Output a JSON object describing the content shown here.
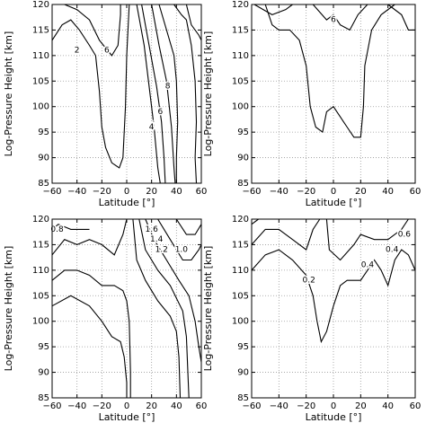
{
  "chart_data": [
    {
      "type": "contour",
      "xlabel": "Latitude [°]",
      "ylabel": "Log-Pressure Height [km]",
      "color": "#000000",
      "grid": true,
      "xlim": [
        -60,
        60
      ],
      "ylim": [
        85,
        120
      ],
      "xticks": [
        {
          "value": -60,
          "label": "−60"
        },
        {
          "value": -40,
          "label": "−40"
        },
        {
          "value": -20,
          "label": "−20"
        },
        0,
        20,
        40,
        60
      ],
      "yticks": [
        85,
        90,
        95,
        100,
        105,
        110,
        115,
        120
      ],
      "series": [
        {
          "x": [
            -60,
            -52,
            -45,
            -38,
            -30,
            -25,
            -22,
            -20,
            -17,
            -12,
            -6,
            -3,
            -1,
            0,
            2
          ],
          "y": [
            113,
            116,
            117,
            115,
            112,
            110,
            103,
            96,
            92,
            89,
            88,
            90,
            100,
            110,
            120
          ]
        },
        {
          "x": [
            -50,
            -40,
            -30,
            -22,
            -12,
            -7,
            -5,
            -5
          ],
          "y": [
            120,
            119,
            117,
            113,
            110,
            112,
            118,
            120
          ]
        },
        {
          "x": [
            8,
            14,
            18,
            22,
            25,
            27
          ],
          "y": [
            120,
            112,
            104,
            96,
            88,
            85
          ]
        },
        {
          "x": [
            12,
            18,
            24,
            28,
            30,
            31
          ],
          "y": [
            120,
            112,
            104,
            97,
            90,
            85
          ]
        },
        {
          "x": [
            20,
            26,
            32,
            36,
            38,
            39
          ],
          "y": [
            120,
            112,
            105,
            96,
            88,
            85
          ]
        },
        {
          "x": [
            26,
            32,
            38,
            40,
            41,
            40,
            40
          ],
          "y": [
            120,
            115,
            110,
            105,
            97,
            90,
            85
          ]
        },
        {
          "x": [
            38,
            44,
            48,
            52,
            55,
            56,
            55,
            56
          ],
          "y": [
            120,
            118,
            117,
            112,
            105,
            97,
            90,
            85
          ]
        },
        {
          "x": [
            48,
            52,
            58,
            60
          ],
          "y": [
            120,
            116,
            114,
            113
          ]
        }
      ],
      "contour_labels": [
        {
          "value": 2,
          "x": -40,
          "y": 111
        },
        {
          "value": 6,
          "x": -16,
          "y": 111
        },
        {
          "value": 8,
          "x": 33,
          "y": 104
        },
        {
          "value": 6,
          "x": 27,
          "y": 99
        },
        {
          "value": 4,
          "x": 20,
          "y": 96
        }
      ]
    },
    {
      "type": "contour",
      "xlabel": "Latitude [°]",
      "ylabel": "Log-Pressure Height [km]",
      "color": "#000000",
      "grid": true,
      "xlim": [
        -60,
        60
      ],
      "ylim": [
        85,
        120
      ],
      "xticks": [
        {
          "value": -60,
          "label": "−60"
        },
        {
          "value": -40,
          "label": "−40"
        },
        {
          "value": -20,
          "label": "−20"
        },
        0,
        20,
        40,
        60
      ],
      "yticks": [
        85,
        90,
        95,
        100,
        105,
        110,
        115,
        120
      ],
      "series": [
        {
          "x": [
            -50,
            -45,
            -40,
            -32,
            -25,
            -20,
            -17,
            -13,
            -8,
            -5,
            0,
            5,
            10,
            15,
            20,
            22,
            23,
            28,
            35,
            45
          ],
          "y": [
            120,
            116,
            115,
            115,
            113,
            108,
            100,
            96,
            95,
            99,
            100,
            98,
            96,
            94,
            94,
            100,
            108,
            115,
            118,
            120
          ]
        },
        {
          "x": [
            -58,
            -45,
            -35,
            -30
          ],
          "y": [
            120,
            118,
            119,
            120
          ]
        },
        {
          "x": [
            -15,
            -5,
            0,
            5,
            12,
            18,
            25
          ],
          "y": [
            120,
            117,
            118,
            116,
            115,
            118,
            120
          ]
        },
        {
          "x": [
            40,
            50,
            55,
            60
          ],
          "y": [
            120,
            118,
            115,
            115
          ]
        }
      ],
      "contour_labels": [
        {
          "value": 6,
          "x": 0,
          "y": 117
        }
      ]
    },
    {
      "type": "contour",
      "xlabel": "Latitude [°]",
      "ylabel": "Log-Pressure Height [km]",
      "color": "#000000",
      "grid": true,
      "xlim": [
        -60,
        60
      ],
      "ylim": [
        85,
        120
      ],
      "xticks": [
        {
          "value": -60,
          "label": "−60"
        },
        {
          "value": -40,
          "label": "−40"
        },
        {
          "value": -20,
          "label": "−20"
        },
        0,
        20,
        40,
        60
      ],
      "yticks": [
        85,
        90,
        95,
        100,
        105,
        110,
        115,
        120
      ],
      "series": [
        {
          "x": [
            -60,
            -50,
            -40,
            -30,
            -20,
            -10,
            -3,
            0,
            2,
            3,
            3
          ],
          "y": [
            108,
            110,
            110,
            109,
            107,
            107,
            106,
            104,
            100,
            90,
            85
          ]
        },
        {
          "x": [
            -60,
            -45,
            -30,
            -20,
            -12,
            -5,
            -2,
            0,
            0
          ],
          "y": [
            103,
            105,
            103,
            100,
            97,
            96,
            93,
            88,
            85
          ]
        },
        {
          "x": [
            -60,
            -50,
            -40,
            -30,
            -20,
            -10,
            -3,
            0
          ],
          "y": [
            113,
            116,
            115,
            116,
            115,
            113,
            117,
            120
          ]
        },
        {
          "x": [
            -60,
            -55,
            -45,
            -40,
            -30
          ],
          "y": [
            118,
            119,
            118,
            118,
            118
          ]
        },
        {
          "x": [
            5,
            8,
            15,
            25,
            35,
            40,
            42,
            43
          ],
          "y": [
            120,
            112,
            108,
            104,
            101,
            98,
            93,
            85
          ]
        },
        {
          "x": [
            10,
            15,
            25,
            35,
            45,
            48,
            50
          ],
          "y": [
            120,
            114,
            110,
            107,
            102,
            97,
            85
          ]
        },
        {
          "x": [
            15,
            22,
            32,
            42,
            50,
            55,
            58,
            60
          ],
          "y": [
            120,
            116,
            112,
            108,
            105,
            100,
            95,
            92
          ]
        },
        {
          "x": [
            25,
            35,
            45,
            52,
            58,
            60
          ],
          "y": [
            120,
            116,
            112,
            112,
            114,
            115
          ]
        },
        {
          "x": [
            40,
            48,
            55,
            60
          ],
          "y": [
            120,
            117,
            117,
            119
          ]
        }
      ],
      "contour_labels": [
        {
          "value": 0.8,
          "x": -56,
          "y": 118
        },
        {
          "value": 1.6,
          "x": 20,
          "y": 118
        },
        {
          "value": 1.4,
          "x": 24,
          "y": 116
        },
        {
          "value": 1.2,
          "x": 28,
          "y": 114
        },
        {
          "value": 1,
          "label": "1.0",
          "x": 44,
          "y": 114
        }
      ]
    },
    {
      "type": "contour",
      "xlabel": "Latitude [°]",
      "ylabel": "Log-Pressure Height [km]",
      "color": "#000000",
      "grid": true,
      "xlim": [
        -60,
        60
      ],
      "ylim": [
        85,
        120
      ],
      "xticks": [
        {
          "value": -60,
          "label": "−60"
        },
        {
          "value": -40,
          "label": "−40"
        },
        {
          "value": -20,
          "label": "−20"
        },
        0,
        20,
        40,
        60
      ],
      "yticks": [
        85,
        90,
        95,
        100,
        105,
        110,
        115,
        120
      ],
      "series": [
        {
          "x": [
            -60,
            -50,
            -40,
            -30,
            -20,
            -15,
            -12,
            -9,
            -5,
            0,
            5,
            10,
            20,
            25,
            30,
            35,
            40,
            45,
            50,
            55,
            60
          ],
          "y": [
            110,
            113,
            114,
            112,
            109,
            105,
            100,
            96,
            98,
            103,
            107,
            108,
            108,
            110,
            112,
            110,
            107,
            112,
            114,
            113,
            110
          ]
        },
        {
          "x": [
            -60,
            -50,
            -40,
            -30,
            -20,
            -15,
            -10
          ],
          "y": [
            115,
            118,
            118,
            116,
            114,
            118,
            120
          ]
        },
        {
          "x": [
            -5,
            -3,
            5,
            15,
            20,
            30,
            40,
            50,
            55
          ],
          "y": [
            120,
            114,
            112,
            115,
            117,
            116,
            116,
            118,
            120
          ]
        },
        {
          "x": [
            -60,
            -55
          ],
          "y": [
            119,
            120
          ]
        }
      ],
      "contour_labels": [
        {
          "value": 0.2,
          "x": -18,
          "y": 108
        },
        {
          "value": 0.4,
          "x": 25,
          "y": 111
        },
        {
          "value": 0.4,
          "x": 43,
          "y": 114
        },
        {
          "value": 0.6,
          "x": 52,
          "y": 117
        }
      ]
    }
  ]
}
